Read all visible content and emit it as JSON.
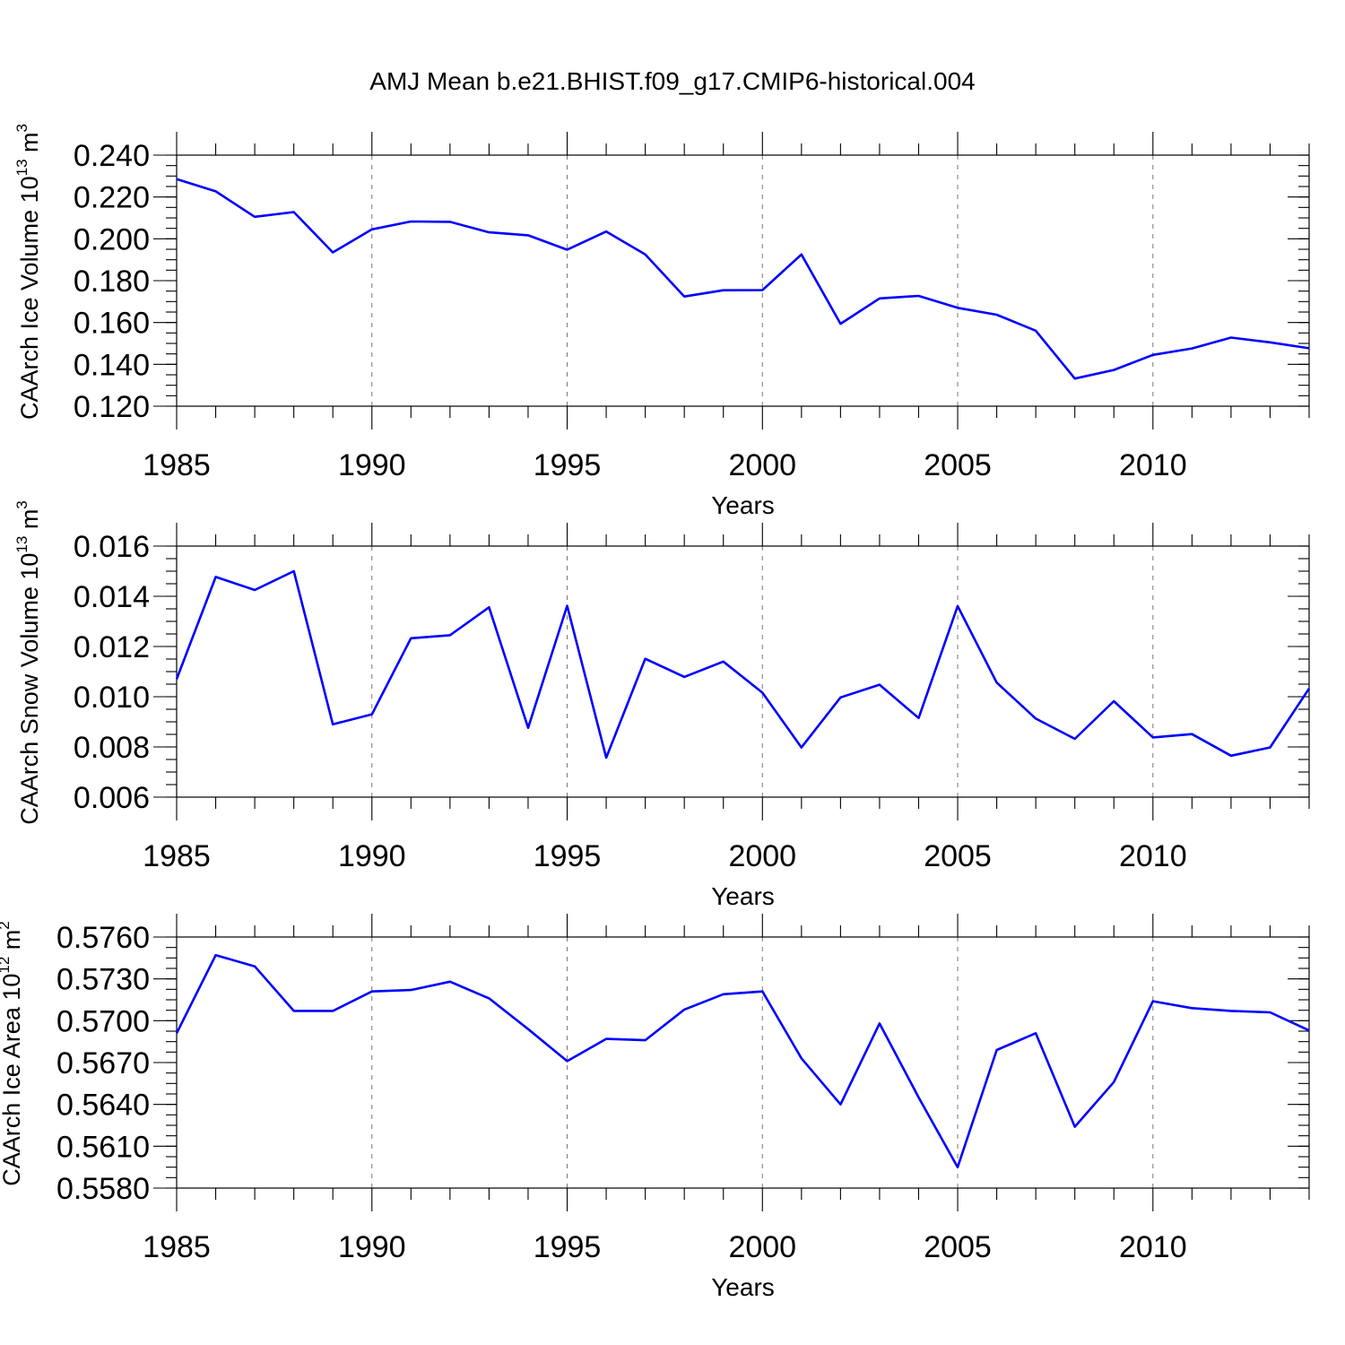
{
  "title": "AMJ Mean b.e21.BHIST.f09_g17.CMIP6-historical.004",
  "chart_data": [
    {
      "type": "line",
      "ylabel": {
        "main": "CAArch Ice Volume 10",
        "exp": "13",
        "unit": " m",
        "unit_exp": "3"
      },
      "xlabel": "Years",
      "xlim": [
        1985,
        2014
      ],
      "xticks": [
        1985,
        1990,
        1995,
        2000,
        2005,
        2010
      ],
      "ylim": [
        0.12,
        0.24
      ],
      "yticks": [
        0.12,
        0.14,
        0.16,
        0.18,
        0.2,
        0.22,
        0.24
      ],
      "ytick_labels": [
        "0.120",
        "0.140",
        "0.160",
        "0.180",
        "0.200",
        "0.220",
        "0.240"
      ],
      "minor_y_step": 0.005,
      "x": [
        1985,
        1986,
        1987,
        1988,
        1989,
        1990,
        1991,
        1992,
        1993,
        1994,
        1995,
        1996,
        1997,
        1998,
        1999,
        2000,
        2001,
        2002,
        2003,
        2004,
        2005,
        2006,
        2007,
        2008,
        2009,
        2010,
        2011,
        2012,
        2013,
        2014
      ],
      "values": [
        0.2285,
        0.2227,
        0.2105,
        0.2128,
        0.1935,
        0.2045,
        0.2083,
        0.2081,
        0.2031,
        0.2017,
        0.1948,
        0.2035,
        0.1925,
        0.1724,
        0.1754,
        0.1755,
        0.1925,
        0.1594,
        0.1715,
        0.1727,
        0.167,
        0.1637,
        0.1561,
        0.1332,
        0.1373,
        0.1445,
        0.1476,
        0.1528,
        0.1505,
        0.1477
      ]
    },
    {
      "type": "line",
      "ylabel": {
        "main": "CAArch Snow Volume 10",
        "exp": "13",
        "unit": " m",
        "unit_exp": "3"
      },
      "xlabel": "Years",
      "xlim": [
        1985,
        2014
      ],
      "xticks": [
        1985,
        1990,
        1995,
        2000,
        2005,
        2010
      ],
      "ylim": [
        0.006,
        0.016
      ],
      "yticks": [
        0.006,
        0.008,
        0.01,
        0.012,
        0.014,
        0.016
      ],
      "ytick_labels": [
        "0.006",
        "0.008",
        "0.010",
        "0.012",
        "0.014",
        "0.016"
      ],
      "minor_y_step": 0.0005,
      "x": [
        1985,
        1986,
        1987,
        1988,
        1989,
        1990,
        1991,
        1992,
        1993,
        1994,
        1995,
        1996,
        1997,
        1998,
        1999,
        2000,
        2001,
        2002,
        2003,
        2004,
        2005,
        2006,
        2007,
        2008,
        2009,
        2010,
        2011,
        2012,
        2013,
        2014
      ],
      "values": [
        0.0107,
        0.01477,
        0.01425,
        0.015,
        0.0089,
        0.0093,
        0.01233,
        0.01245,
        0.01356,
        0.00876,
        0.01362,
        0.00757,
        0.01151,
        0.01079,
        0.0114,
        0.01016,
        0.00798,
        0.00997,
        0.01048,
        0.00915,
        0.01361,
        0.01056,
        0.00913,
        0.00832,
        0.00982,
        0.00838,
        0.00851,
        0.00765,
        0.00798,
        0.01033
      ]
    },
    {
      "type": "line",
      "ylabel": {
        "main": "CAArch Ice Area 10",
        "exp": "12",
        "unit": " m",
        "unit_exp": "2"
      },
      "xlabel": "Years",
      "xlim": [
        1985,
        2014
      ],
      "xticks": [
        1985,
        1990,
        1995,
        2000,
        2005,
        2010
      ],
      "ylim": [
        0.558,
        0.576
      ],
      "yticks": [
        0.558,
        0.561,
        0.564,
        0.567,
        0.57,
        0.573,
        0.576
      ],
      "ytick_labels": [
        "0.5580",
        "0.5610",
        "0.5640",
        "0.5670",
        "0.5700",
        "0.5730",
        "0.5760"
      ],
      "minor_y_step": 0.00075,
      "x": [
        1985,
        1986,
        1987,
        1988,
        1989,
        1990,
        1991,
        1992,
        1993,
        1994,
        1995,
        1996,
        1997,
        1998,
        1999,
        2000,
        2001,
        2002,
        2003,
        2004,
        2005,
        2006,
        2007,
        2008,
        2009,
        2010,
        2011,
        2012,
        2013,
        2014
      ],
      "values": [
        0.5691,
        0.5747,
        0.5739,
        0.5707,
        0.5707,
        0.5721,
        0.5722,
        0.5728,
        0.5716,
        0.5694,
        0.5671,
        0.5687,
        0.5686,
        0.5708,
        0.5719,
        0.5721,
        0.5673,
        0.564,
        0.5698,
        0.5645,
        0.5595,
        0.5679,
        0.5691,
        0.5624,
        0.5656,
        0.5714,
        0.5709,
        0.5707,
        0.5706,
        0.5693
      ]
    }
  ]
}
